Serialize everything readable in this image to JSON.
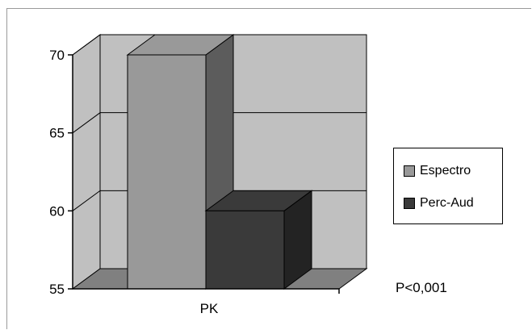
{
  "chart_data": {
    "type": "bar",
    "categories": [
      "PK"
    ],
    "series": [
      {
        "name": "Espectro",
        "values": [
          70
        ],
        "color": "#999999"
      },
      {
        "name": "Perc-Aud",
        "values": [
          60
        ],
        "color": "#3a3a3a"
      }
    ],
    "ylim": [
      55,
      70
    ],
    "yticks": [
      "70",
      "65",
      "60",
      "55"
    ],
    "grid": true,
    "legend_position": "right",
    "annotation": "P<0,001",
    "colors": {
      "wall": "#c0c0c0",
      "floor": "#808080"
    }
  }
}
